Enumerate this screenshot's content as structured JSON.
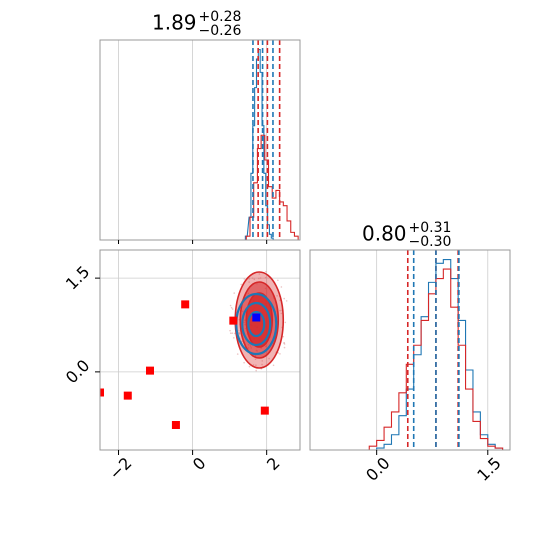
{
  "colors": {
    "red": "#d62728",
    "red_fill": "#f08080",
    "blue": "#1f77b4",
    "grid": "#cccccc",
    "frame": "#999999"
  },
  "titles": {
    "p1": {
      "value": "1.89",
      "plus": "+0.28",
      "minus": "−0.26"
    },
    "p2": {
      "value": "0.80",
      "plus": "+0.31",
      "minus": "−0.30"
    }
  },
  "chart_data": [
    {
      "type": "histogram",
      "panel": "marginal-param1",
      "xlim": [
        -2.5,
        2.9
      ],
      "series": [
        {
          "color": "blue",
          "x": [
            1.45,
            1.55,
            1.6,
            1.65,
            1.7,
            1.75,
            1.8,
            1.85,
            1.9,
            1.95,
            2.0,
            2.05,
            2.1,
            2.15,
            2.2
          ],
          "values": [
            0.02,
            0.12,
            0.35,
            0.6,
            0.8,
            0.95,
            1.0,
            0.88,
            0.6,
            0.35,
            0.18,
            0.08,
            0.03,
            0.01,
            0.0
          ]
        },
        {
          "color": "red",
          "x": [
            1.5,
            1.6,
            1.7,
            1.8,
            1.9,
            2.0,
            2.1,
            2.2,
            2.3,
            2.4,
            2.5,
            2.6,
            2.7,
            2.8
          ],
          "values": [
            0.02,
            0.12,
            0.3,
            0.48,
            0.55,
            0.42,
            0.28,
            0.22,
            0.26,
            0.2,
            0.18,
            0.1,
            0.04,
            0.02
          ]
        }
      ],
      "quantiles": {
        "blue": [
          1.63,
          1.89,
          2.17
        ],
        "red": [
          1.77,
          2.02,
          2.35
        ]
      },
      "grid": true
    },
    {
      "type": "scatter",
      "panel": "joint",
      "xlim": [
        -2.5,
        2.9
      ],
      "ylim": [
        -1.25,
        1.95
      ],
      "xticks": [
        "−2",
        "0",
        "2"
      ],
      "xtick_values": [
        -2,
        0,
        2
      ],
      "yticks": [
        "0.0",
        "1.5"
      ],
      "ytick_values": [
        0.0,
        1.5
      ],
      "red_points": [
        {
          "x": -0.2,
          "y": 1.08
        },
        {
          "x": 1.1,
          "y": 0.82
        },
        {
          "x": -1.15,
          "y": 0.02
        },
        {
          "x": -2.5,
          "y": -0.33
        },
        {
          "x": -1.75,
          "y": -0.38
        },
        {
          "x": -0.45,
          "y": -0.85
        },
        {
          "x": 1.95,
          "y": -0.62
        }
      ],
      "blue_points": [
        {
          "x": 1.72,
          "y": 0.87
        }
      ],
      "contour_center": {
        "x": 1.8,
        "y": 0.83
      },
      "grid": true
    },
    {
      "type": "histogram",
      "panel": "marginal-param2",
      "xlim": [
        -0.9,
        1.8
      ],
      "xticks": [
        "0.0",
        "1.5"
      ],
      "xtick_values": [
        0.0,
        1.5
      ],
      "series": [
        {
          "color": "blue",
          "x": [
            0.05,
            0.15,
            0.25,
            0.35,
            0.45,
            0.55,
            0.65,
            0.75,
            0.85,
            0.95,
            1.05,
            1.15,
            1.25,
            1.35,
            1.45,
            1.55,
            1.65
          ],
          "values": [
            0.01,
            0.03,
            0.08,
            0.18,
            0.32,
            0.5,
            0.7,
            0.88,
            0.98,
            1.0,
            0.9,
            0.68,
            0.42,
            0.2,
            0.08,
            0.03,
            0.01
          ]
        },
        {
          "color": "red",
          "x": [
            -0.05,
            0.05,
            0.15,
            0.25,
            0.35,
            0.45,
            0.55,
            0.65,
            0.75,
            0.85,
            0.95,
            1.05,
            1.15,
            1.25,
            1.35,
            1.45,
            1.55,
            1.65
          ],
          "values": [
            0.02,
            0.05,
            0.12,
            0.2,
            0.3,
            0.45,
            0.55,
            0.68,
            0.82,
            0.9,
            0.95,
            0.75,
            0.55,
            0.32,
            0.15,
            0.06,
            0.02,
            0.01
          ]
        }
      ],
      "quantiles": {
        "blue": [
          0.5,
          0.8,
          1.11
        ],
        "red": [
          0.42,
          0.8,
          1.1
        ]
      },
      "grid": true
    }
  ]
}
